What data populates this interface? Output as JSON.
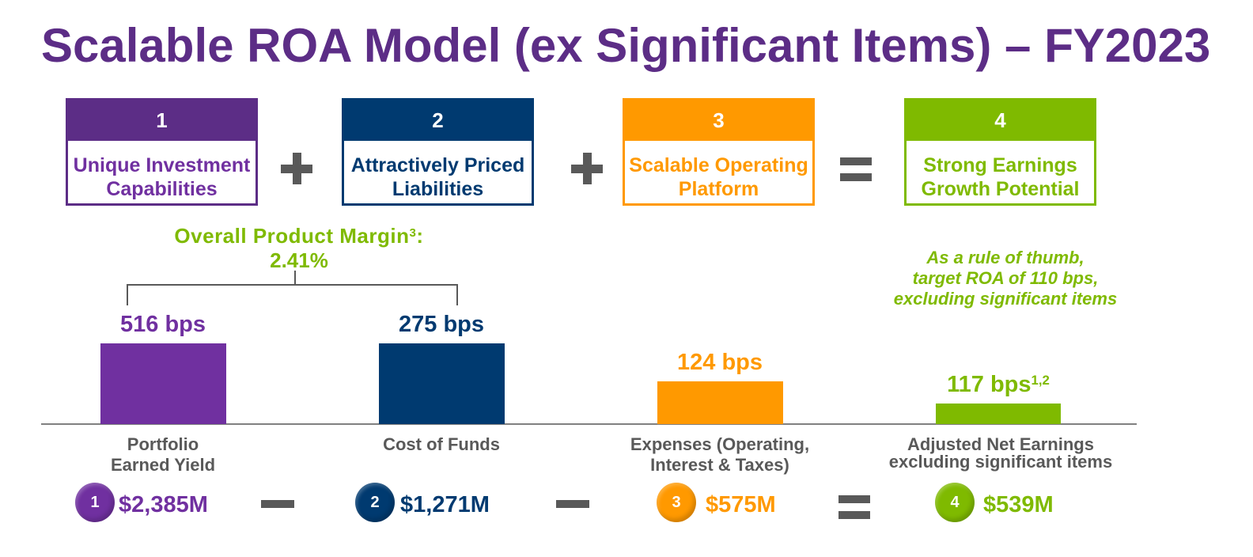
{
  "title": "Scalable ROA Model (ex Significant Items) – FY2023",
  "colors": {
    "title": "#5C2D86",
    "purple_dark": "#5C2D86",
    "purple": "#7030A0",
    "navy": "#003A70",
    "orange": "#FF9900",
    "green": "#7FBA00",
    "gray": "#595959",
    "axis": "#808080"
  },
  "pillars": [
    {
      "number": "1",
      "lines": [
        "Unique Investment",
        "Capabilities"
      ]
    },
    {
      "number": "2",
      "lines": [
        "Attractively Priced",
        "Liabilities"
      ]
    },
    {
      "number": "3",
      "lines": [
        "Scalable Operating",
        "Platform"
      ]
    },
    {
      "number": "4",
      "lines": [
        "Strong Earnings",
        "Growth Potential"
      ]
    }
  ],
  "pillar_operators": [
    "plus-icon",
    "plus-icon",
    "equals-icon"
  ],
  "product_margin": {
    "label": "Overall Product Margin",
    "footnote": "3",
    "suffix": ":",
    "value": "2.41%"
  },
  "bars": [
    {
      "value": "516 bps",
      "category": [
        "Portfolio",
        "Earned Yield"
      ]
    },
    {
      "value": "275 bps",
      "category": [
        "Cost of Funds"
      ]
    },
    {
      "value": "124 bps",
      "category": [
        "Expenses (Operating,",
        "Interest & Taxes)"
      ]
    },
    {
      "value": "117 bps",
      "footnote": "1,2",
      "category": [
        "Adjusted Net Earnings",
        "excluding significant items"
      ]
    }
  ],
  "roa_note": [
    "As a rule of thumb,",
    "target ROA of 110 bps,",
    "excluding significant items"
  ],
  "amounts": [
    {
      "number": "1",
      "amount": "$2,385M"
    },
    {
      "number": "2",
      "amount": "$1,271M"
    },
    {
      "number": "3",
      "amount": "$575M"
    },
    {
      "number": "4",
      "amount": "$539M"
    }
  ],
  "amount_operators": [
    "minus-icon",
    "minus-icon",
    "equals-icon"
  ]
}
